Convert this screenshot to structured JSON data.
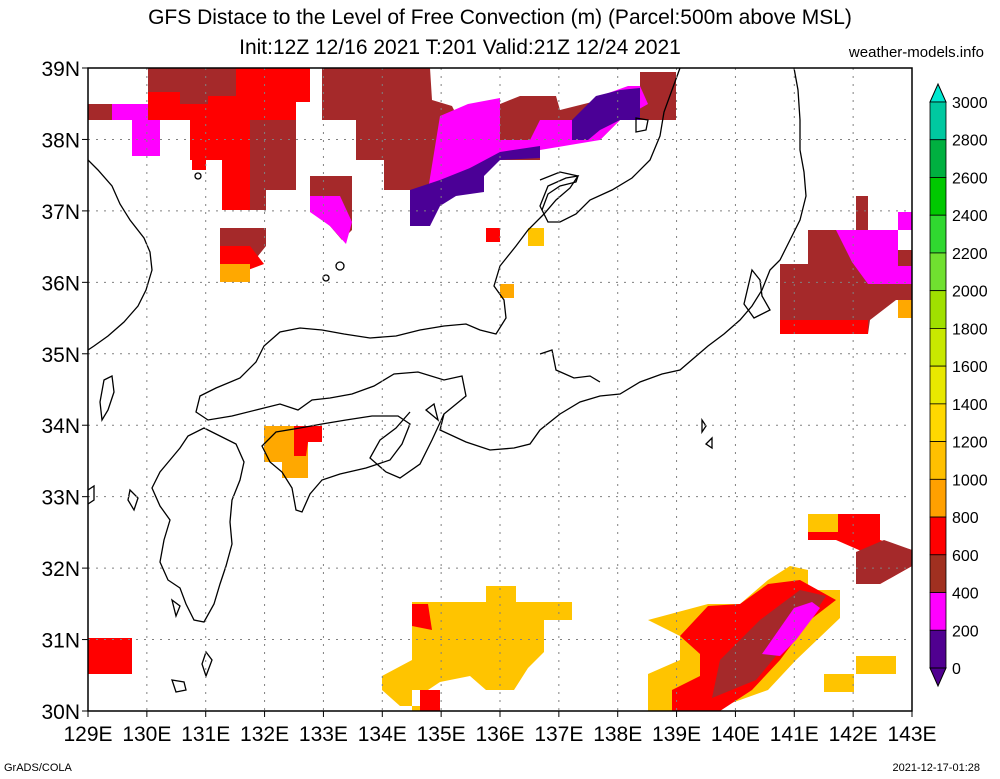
{
  "title_line1": "GFS Distace to the Level of Free Convection (m) (Parcel:500m above MSL)",
  "title_line2": "Init:12Z 12/16 2021 T:201 Valid:21Z 12/24 2021",
  "site": "weather-models.info",
  "footer_left": "GrADS/COLA",
  "footer_right": "2021-12-17-01:28",
  "lat_labels": [
    "39N",
    "38N",
    "37N",
    "36N",
    "35N",
    "34N",
    "33N",
    "32N",
    "31N",
    "30N"
  ],
  "lon_labels": [
    "129E",
    "130E",
    "131E",
    "132E",
    "133E",
    "134E",
    "135E",
    "136E",
    "137E",
    "138E",
    "139E",
    "140E",
    "141E",
    "142E",
    "143E"
  ],
  "colorbar": {
    "labels": [
      "3000",
      "2800",
      "2600",
      "2400",
      "2200",
      "2000",
      "1800",
      "1600",
      "1400",
      "1200",
      "1000",
      "800",
      "600",
      "400",
      "200",
      "0"
    ],
    "colors": [
      "#00e8d0",
      "#00c8a0",
      "#00b040",
      "#00c800",
      "#30d830",
      "#70e030",
      "#a0e000",
      "#c8e800",
      "#e8e800",
      "#ffd800",
      "#ffc000",
      "#ffa000",
      "#ff0000",
      "#a03020",
      "#ff00ff",
      "#500090"
    ]
  },
  "field_colors": {
    "magenta": "#ff00ff",
    "indigo": "#4b0096",
    "brown": "#a5292a",
    "red": "#ff0000",
    "orange": "#ffa800",
    "yellow": "#ffc400"
  }
}
